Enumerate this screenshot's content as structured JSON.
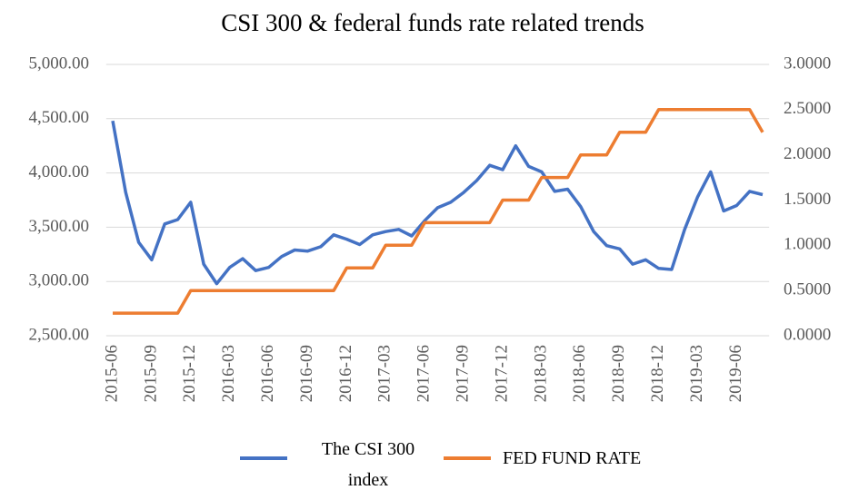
{
  "chart_data": {
    "type": "line",
    "title": "CSI 300 & federal funds rate related trends",
    "categories": [
      "2015-06",
      null,
      null,
      "2015-09",
      null,
      null,
      "2015-12",
      null,
      null,
      "2016-03",
      null,
      null,
      "2016-06",
      null,
      null,
      "2016-09",
      null,
      null,
      "2016-12",
      null,
      null,
      "2017-03",
      null,
      null,
      "2017-06",
      null,
      null,
      "2017-09",
      null,
      null,
      "2017-12",
      null,
      null,
      "2018-03",
      null,
      null,
      "2018-06",
      null,
      null,
      "2018-09",
      null,
      null,
      "2018-12",
      null,
      null,
      "2019-03",
      null,
      null,
      "2019-06",
      null,
      null
    ],
    "series": [
      {
        "name": "The CSI 300 index",
        "color": "#4472c4",
        "axis": "y",
        "values": [
          4480,
          3820,
          3360,
          3200,
          3530,
          3570,
          3730,
          3160,
          2980,
          3130,
          3210,
          3100,
          3130,
          3230,
          3290,
          3280,
          3320,
          3430,
          3390,
          3340,
          3430,
          3460,
          3480,
          3420,
          3560,
          3680,
          3730,
          3820,
          3930,
          4070,
          4030,
          4250,
          4060,
          4010,
          3830,
          3850,
          3690,
          3460,
          3330,
          3300,
          3160,
          3200,
          3120,
          3110,
          3480,
          3780,
          4010,
          3650,
          3700,
          3830,
          3800
        ]
      },
      {
        "name": "FED FUND RATE",
        "color": "#ed7d31",
        "axis": "y2",
        "values": [
          0.25,
          0.25,
          0.25,
          0.25,
          0.25,
          0.25,
          0.5,
          0.5,
          0.5,
          0.5,
          0.5,
          0.5,
          0.5,
          0.5,
          0.5,
          0.5,
          0.5,
          0.5,
          0.75,
          0.75,
          0.75,
          1.0,
          1.0,
          1.0,
          1.25,
          1.25,
          1.25,
          1.25,
          1.25,
          1.25,
          1.5,
          1.5,
          1.5,
          1.75,
          1.75,
          1.75,
          2.0,
          2.0,
          2.0,
          2.25,
          2.25,
          2.25,
          2.5,
          2.5,
          2.5,
          2.5,
          2.5,
          2.5,
          2.5,
          2.5,
          2.25
        ]
      }
    ],
    "ylim": [
      2500,
      5000
    ],
    "yticks": [
      {
        "value": 2500,
        "label": "2,500.00"
      },
      {
        "value": 3000,
        "label": "3,000.00"
      },
      {
        "value": 3500,
        "label": "3,500.00"
      },
      {
        "value": 4000,
        "label": "4,000.00"
      },
      {
        "value": 4500,
        "label": "4,500.00"
      },
      {
        "value": 5000,
        "label": "5,000.00"
      }
    ],
    "y2lim": [
      0,
      3
    ],
    "y2ticks": [
      {
        "value": 0,
        "label": "0.0000"
      },
      {
        "value": 0.5,
        "label": "0.5000"
      },
      {
        "value": 1,
        "label": "1.0000"
      },
      {
        "value": 1.5,
        "label": "1.5000"
      },
      {
        "value": 2,
        "label": "2.0000"
      },
      {
        "value": 2.5,
        "label": "2.5000"
      },
      {
        "value": 3,
        "label": "3.0000"
      }
    ],
    "grid": true
  }
}
